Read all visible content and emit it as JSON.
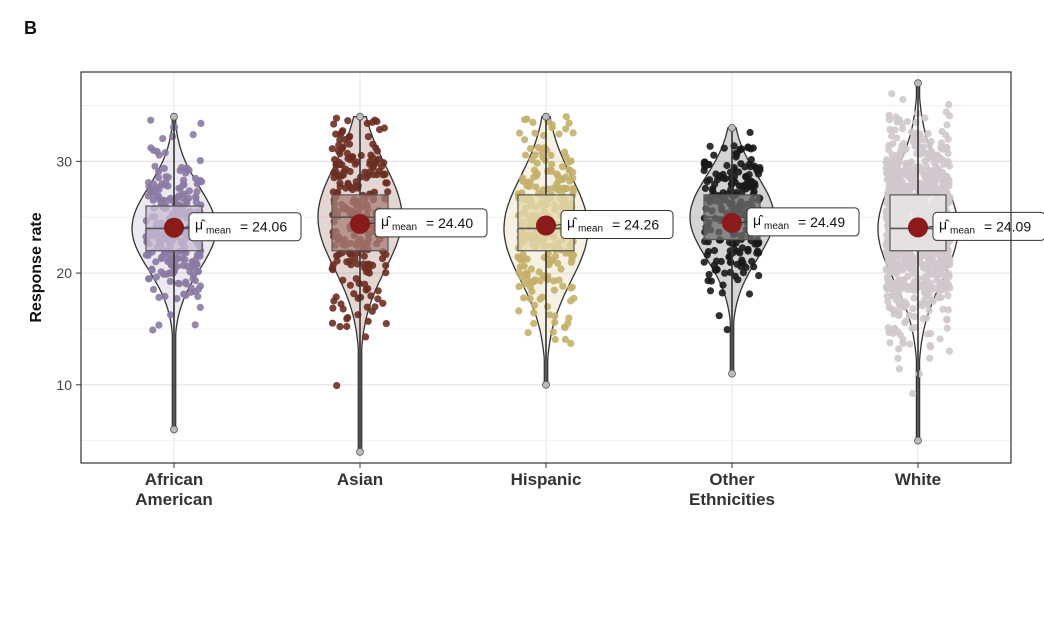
{
  "panel_label": "B",
  "chart_data": {
    "type": "violin-box-scatter",
    "title": "",
    "xlabel": "",
    "ylabel": "Response rate",
    "ylim": [
      3,
      38
    ],
    "yticks": [
      10,
      20,
      30
    ],
    "grid": true,
    "mean_marker_color": "#8b1a1a",
    "annotation_prefix": "μ̂",
    "annotation_subscript": "mean",
    "groups": [
      {
        "name": "African American",
        "label_lines": [
          "African",
          "American"
        ],
        "color": "#8b7aa3",
        "fill": "#b3a7c4",
        "box_fill": "#c9bfd6",
        "mean": 24.06,
        "mean_label": "= 24.06",
        "median": 24,
        "q1": 22,
        "q3": 26,
        "min": 6,
        "max": 34,
        "n_points": 280
      },
      {
        "name": "Asian",
        "label_lines": [
          "Asian"
        ],
        "color": "#6b2e22",
        "fill": "#8f5b50",
        "box_fill": "#a9807a",
        "mean": 24.4,
        "mean_label": "= 24.40",
        "median": 25,
        "q1": 22,
        "q3": 27,
        "min": 4,
        "max": 34,
        "n_points": 260
      },
      {
        "name": "Hispanic",
        "label_lines": [
          "Hispanic"
        ],
        "color": "#c4b06a",
        "fill": "#d9cb94",
        "box_fill": "#e4d9ad",
        "mean": 24.26,
        "mean_label": "= 24.26",
        "median": 24,
        "q1": 22,
        "q3": 27,
        "min": 10,
        "max": 34,
        "n_points": 270
      },
      {
        "name": "Other Ethnicities",
        "label_lines": [
          "Other",
          "Ethnicities"
        ],
        "color": "#1a1a1a",
        "fill": "#555555",
        "box_fill": "#6e6e6e",
        "mean": 24.49,
        "mean_label": "= 24.49",
        "median": 25,
        "q1": 23,
        "q3": 27,
        "min": 11,
        "max": 33,
        "n_points": 220
      },
      {
        "name": "White",
        "label_lines": [
          "White"
        ],
        "color": "#cfc8cc",
        "fill": "#e6e1e4",
        "box_fill": "#ece8ea",
        "mean": 24.09,
        "mean_label": "= 24.09",
        "median": 24,
        "q1": 22,
        "q3": 27,
        "min": 5,
        "max": 37,
        "n_points": 900
      }
    ]
  }
}
